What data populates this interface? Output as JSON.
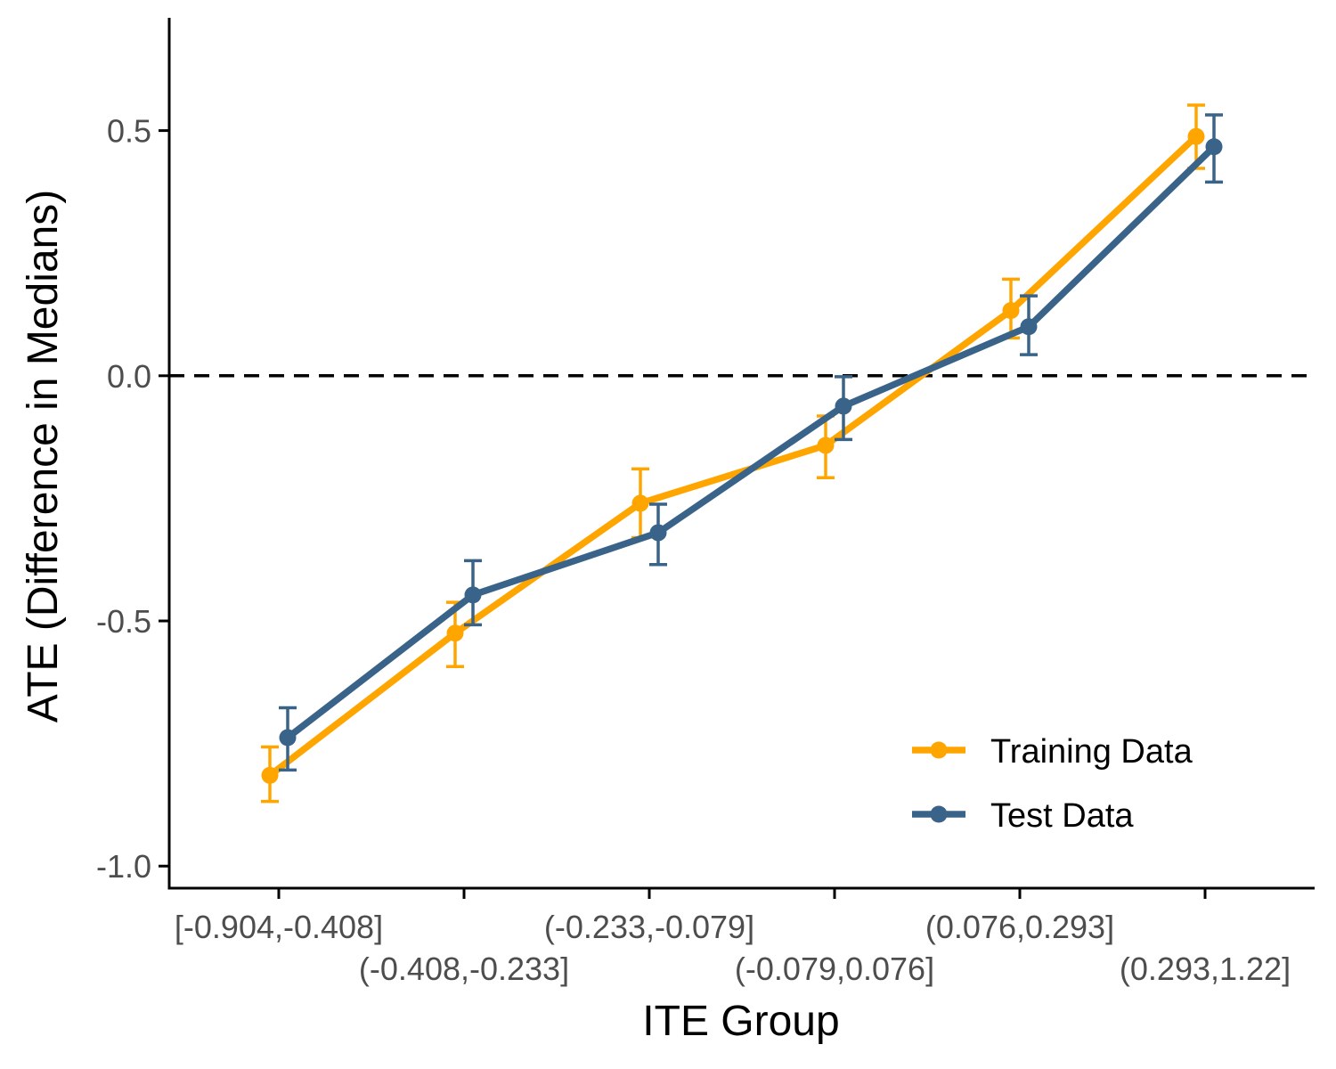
{
  "chart_data": {
    "type": "line",
    "xlabel": "ITE Group",
    "ylabel": "ATE (Difference in Medians)",
    "categories": [
      "[-0.904,-0.408]",
      "(-0.408,-0.233]",
      "(-0.233,-0.079]",
      "(-0.079,0.076]",
      "(0.076,0.293]",
      "(0.293,1.22]"
    ],
    "ylim": [
      -1.045,
      0.73
    ],
    "yticks": [
      -1.0,
      -0.5,
      0.0,
      0.5
    ],
    "ytick_labels": [
      "-1.0",
      "-0.5",
      "0.0",
      "0.5"
    ],
    "reference_line": 0,
    "grid": false,
    "legend_position": "bottom-right",
    "series": [
      {
        "name": "Training Data",
        "color": "#FFA500",
        "values": [
          -0.815,
          -0.525,
          -0.26,
          -0.142,
          0.133,
          0.488
        ],
        "lower": [
          -0.868,
          -0.593,
          -0.33,
          -0.208,
          0.077,
          0.423
        ],
        "upper": [
          -0.757,
          -0.462,
          -0.19,
          -0.082,
          0.197,
          0.552
        ]
      },
      {
        "name": "Test Data",
        "color": "#3A6389",
        "values": [
          -0.738,
          -0.447,
          -0.32,
          -0.062,
          0.1,
          0.467
        ],
        "lower": [
          -0.804,
          -0.508,
          -0.385,
          -0.13,
          0.043,
          0.395
        ],
        "upper": [
          -0.677,
          -0.377,
          -0.262,
          -0.002,
          0.163,
          0.532
        ]
      }
    ]
  }
}
